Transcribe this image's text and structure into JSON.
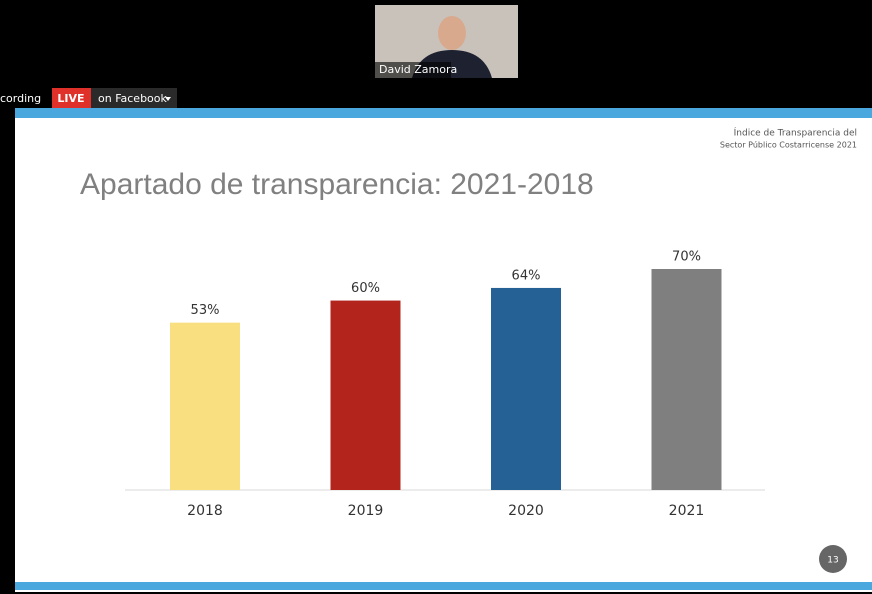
{
  "meeting": {
    "participant_name": "David Zamora",
    "recording_label": "cording",
    "live_badge": "LIVE",
    "stream_target": "on Facebook"
  },
  "slide": {
    "header_lines": [
      "Índice de Transparencia del",
      "Sector Público Costarricense 2021"
    ],
    "page_number": "13"
  },
  "chart_data": {
    "type": "bar",
    "title": "Apartado de transparencia: 2021-2018",
    "categories": [
      "2018",
      "2019",
      "2020",
      "2021"
    ],
    "values": [
      53,
      60,
      64,
      70
    ],
    "value_labels": [
      "53%",
      "60%",
      "64%",
      "70%"
    ],
    "colors": [
      "#f9df7f",
      "#b3241c",
      "#266195",
      "#7f7f80"
    ]
  }
}
